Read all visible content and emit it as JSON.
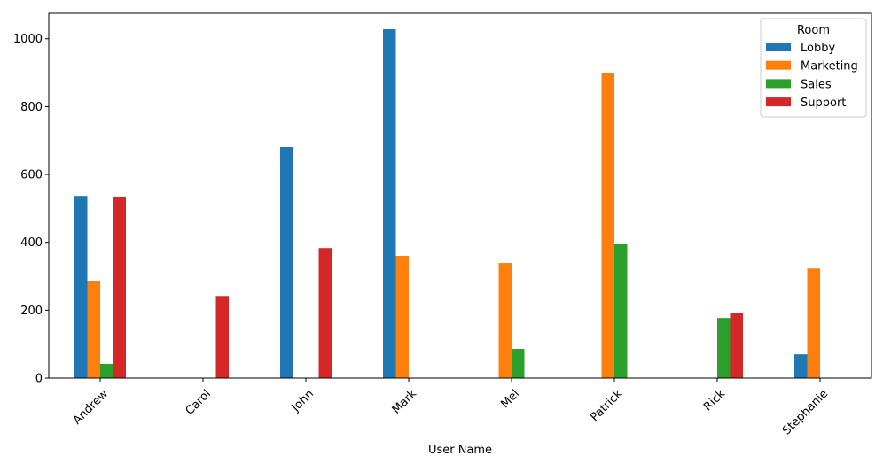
{
  "chart_data": {
    "type": "bar",
    "xlabel": "User Name",
    "ylabel": "",
    "ylim": [
      0,
      1075
    ],
    "yticks": [
      0,
      200,
      400,
      600,
      800,
      1000
    ],
    "categories": [
      "Andrew",
      "Carol",
      "John",
      "Mark",
      "Mel",
      "Patrick",
      "Rick",
      "Stephanie"
    ],
    "legend": {
      "title": "Room",
      "placement": "top-right"
    },
    "series": [
      {
        "name": "Lobby",
        "color": "#1f77b4",
        "values": [
          537,
          0,
          681,
          1028,
          0,
          0,
          0,
          70
        ]
      },
      {
        "name": "Marketing",
        "color": "#ff7f0e",
        "values": [
          287,
          0,
          0,
          360,
          339,
          899,
          0,
          323
        ]
      },
      {
        "name": "Sales",
        "color": "#2ca02c",
        "values": [
          42,
          0,
          0,
          0,
          86,
          394,
          177,
          0
        ]
      },
      {
        "name": "Support",
        "color": "#d62728",
        "values": [
          535,
          242,
          383,
          0,
          0,
          0,
          193,
          0
        ]
      }
    ],
    "grid": false
  }
}
